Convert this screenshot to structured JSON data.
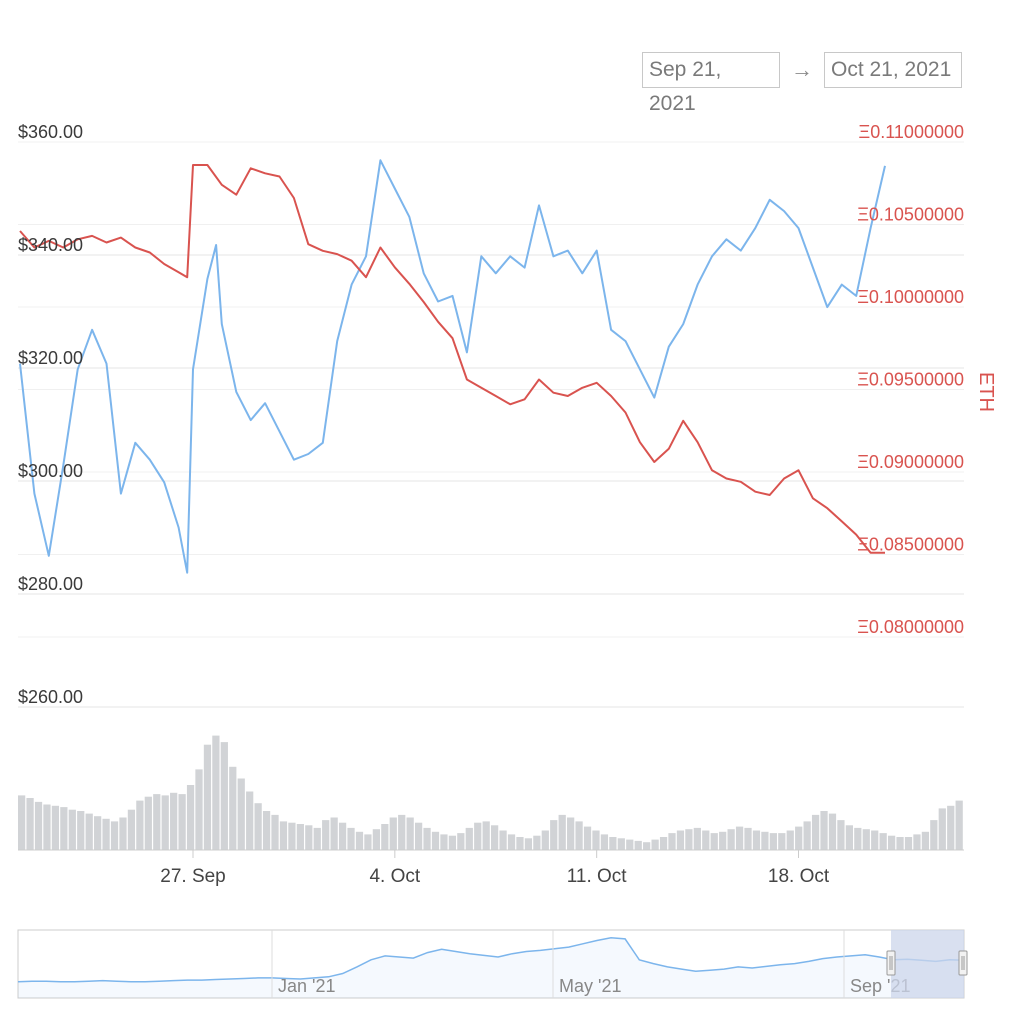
{
  "date_range": {
    "from": "Sep 21, 2021",
    "arrow": "→",
    "to": "Oct 21, 2021"
  },
  "colors": {
    "usd_line": "#7cb5ec",
    "eth_line": "#d9534f",
    "volume": "#c9cbcf",
    "grid": "#e6e6e6",
    "navigator_mask": "#ccd6eb"
  },
  "chart_data": {
    "type": "line",
    "x_label_ticks": [
      "27. Sep",
      "4. Oct",
      "11. Oct",
      "18. Oct"
    ],
    "x_domain": [
      "2021-09-21",
      "2021-10-21"
    ],
    "y_left": {
      "ticks": [
        "$360.00",
        "$340.00",
        "$320.00",
        "$300.00",
        "$280.00",
        "$260.00"
      ],
      "range": [
        260,
        360
      ]
    },
    "y_right": {
      "title": "ETH",
      "ticks": [
        "Ξ0.11000000",
        "Ξ0.10500000",
        "Ξ0.10000000",
        "Ξ0.09500000",
        "Ξ0.09000000",
        "Ξ0.08500000",
        "Ξ0.08000000"
      ],
      "range": [
        0.08,
        0.11
      ]
    },
    "series": [
      {
        "axis": "left",
        "points": [
          [
            "09-21",
            319
          ],
          [
            "09-21.5",
            296
          ],
          [
            "09-22",
            285
          ],
          [
            "09-22.5",
            301
          ],
          [
            "09-23",
            318
          ],
          [
            "09-23.5",
            325
          ],
          [
            "09-24",
            319
          ],
          [
            "09-24.5",
            296
          ],
          [
            "09-25",
            305
          ],
          [
            "09-25.5",
            302
          ],
          [
            "09-26",
            298
          ],
          [
            "09-26.5",
            290
          ],
          [
            "09-26.8",
            282
          ],
          [
            "09-27",
            318
          ],
          [
            "09-27.5",
            334
          ],
          [
            "09-27.8",
            340
          ],
          [
            "09-28",
            326
          ],
          [
            "09-28.5",
            314
          ],
          [
            "09-29",
            309
          ],
          [
            "09-29.5",
            312
          ],
          [
            "09-30",
            307
          ],
          [
            "09-30.5",
            302
          ],
          [
            "10-01",
            303
          ],
          [
            "10-01.5",
            305
          ],
          [
            "10-02",
            323
          ],
          [
            "10-02.5",
            333
          ],
          [
            "10-03",
            338
          ],
          [
            "10-03.5",
            355
          ],
          [
            "10-04",
            350
          ],
          [
            "10-04.5",
            345
          ],
          [
            "10-05",
            335
          ],
          [
            "10-05.5",
            330
          ],
          [
            "10-06",
            331
          ],
          [
            "10-06.5",
            321
          ],
          [
            "10-07",
            338
          ],
          [
            "10-07.5",
            335
          ],
          [
            "10-08",
            338
          ],
          [
            "10-08.5",
            336
          ],
          [
            "10-09",
            347
          ],
          [
            "10-09.5",
            338
          ],
          [
            "10-10",
            339
          ],
          [
            "10-10.5",
            335
          ],
          [
            "10-11",
            339
          ],
          [
            "10-11.5",
            325
          ],
          [
            "10-12",
            323
          ],
          [
            "10-12.5",
            318
          ],
          [
            "10-13",
            313
          ],
          [
            "10-13.5",
            322
          ],
          [
            "10-14",
            326
          ],
          [
            "10-14.5",
            333
          ],
          [
            "10-15",
            338
          ],
          [
            "10-15.5",
            341
          ],
          [
            "10-16",
            339
          ],
          [
            "10-16.5",
            343
          ],
          [
            "10-17",
            348
          ],
          [
            "10-17.5",
            346
          ],
          [
            "10-18",
            343
          ],
          [
            "10-18.5",
            336
          ],
          [
            "10-19",
            329
          ],
          [
            "10-19.5",
            333
          ],
          [
            "10-20",
            331
          ],
          [
            "10-20.5",
            343
          ],
          [
            "10-21",
            354
          ]
        ]
      },
      {
        "axis": "right",
        "points": [
          [
            "09-21",
            0.104
          ],
          [
            "09-21.5",
            0.103
          ],
          [
            "09-22",
            0.1034
          ],
          [
            "09-22.5",
            0.103
          ],
          [
            "09-23",
            0.1035
          ],
          [
            "09-23.5",
            0.1037
          ],
          [
            "09-24",
            0.1033
          ],
          [
            "09-24.5",
            0.1036
          ],
          [
            "09-25",
            0.103
          ],
          [
            "09-25.5",
            0.1027
          ],
          [
            "09-26",
            0.102
          ],
          [
            "09-26.5",
            0.1015
          ],
          [
            "09-26.8",
            0.1012
          ],
          [
            "09-27",
            0.108
          ],
          [
            "09-27.5",
            0.108
          ],
          [
            "09-28",
            0.1068
          ],
          [
            "09-28.5",
            0.1062
          ],
          [
            "09-29",
            0.1078
          ],
          [
            "09-29.5",
            0.1075
          ],
          [
            "09-30",
            0.1073
          ],
          [
            "09-30.5",
            0.106
          ],
          [
            "10-01",
            0.1032
          ],
          [
            "10-01.5",
            0.1028
          ],
          [
            "10-02",
            0.1026
          ],
          [
            "10-02.5",
            0.1022
          ],
          [
            "10-03",
            0.1012
          ],
          [
            "10-03.5",
            0.103
          ],
          [
            "10-04",
            0.1018
          ],
          [
            "10-04.5",
            0.1008
          ],
          [
            "10-05",
            0.0997
          ],
          [
            "10-05.5",
            0.0985
          ],
          [
            "10-06",
            0.0975
          ],
          [
            "10-06.5",
            0.095
          ],
          [
            "10-07",
            0.0945
          ],
          [
            "10-07.5",
            0.094
          ],
          [
            "10-08",
            0.0935
          ],
          [
            "10-08.5",
            0.0938
          ],
          [
            "10-09",
            0.095
          ],
          [
            "10-09.5",
            0.0942
          ],
          [
            "10-10",
            0.094
          ],
          [
            "10-10.5",
            0.0945
          ],
          [
            "10-11",
            0.0948
          ],
          [
            "10-11.5",
            0.094
          ],
          [
            "10-12",
            0.093
          ],
          [
            "10-12.5",
            0.0912
          ],
          [
            "10-13",
            0.09
          ],
          [
            "10-13.5",
            0.0908
          ],
          [
            "10-14",
            0.0925
          ],
          [
            "10-14.5",
            0.0912
          ],
          [
            "10-15",
            0.0895
          ],
          [
            "10-15.5",
            0.089
          ],
          [
            "10-16",
            0.0888
          ],
          [
            "10-16.5",
            0.0882
          ],
          [
            "10-17",
            0.088
          ],
          [
            "10-17.5",
            0.089
          ],
          [
            "10-18",
            0.0895
          ],
          [
            "10-18.5",
            0.0878
          ],
          [
            "10-19",
            0.0872
          ],
          [
            "10-19.5",
            0.0864
          ],
          [
            "10-20",
            0.0856
          ],
          [
            "10-20.5",
            0.0845
          ],
          [
            "10-21",
            0.0845
          ]
        ]
      }
    ],
    "volume": [
      0.42,
      0.4,
      0.37,
      0.35,
      0.34,
      0.33,
      0.31,
      0.3,
      0.28,
      0.26,
      0.24,
      0.22,
      0.25,
      0.31,
      0.38,
      0.41,
      0.43,
      0.42,
      0.44,
      0.43,
      0.5,
      0.62,
      0.81,
      0.88,
      0.83,
      0.64,
      0.55,
      0.45,
      0.36,
      0.3,
      0.27,
      0.22,
      0.21,
      0.2,
      0.19,
      0.17,
      0.23,
      0.25,
      0.21,
      0.17,
      0.14,
      0.12,
      0.16,
      0.2,
      0.25,
      0.27,
      0.25,
      0.21,
      0.17,
      0.14,
      0.12,
      0.11,
      0.13,
      0.17,
      0.21,
      0.22,
      0.19,
      0.15,
      0.12,
      0.1,
      0.09,
      0.11,
      0.15,
      0.23,
      0.27,
      0.25,
      0.22,
      0.18,
      0.15,
      0.12,
      0.1,
      0.09,
      0.08,
      0.07,
      0.06,
      0.08,
      0.1,
      0.13,
      0.15,
      0.16,
      0.17,
      0.15,
      0.13,
      0.14,
      0.16,
      0.18,
      0.17,
      0.15,
      0.14,
      0.13,
      0.13,
      0.15,
      0.18,
      0.22,
      0.27,
      0.3,
      0.28,
      0.23,
      0.19,
      0.17,
      0.16,
      0.15,
      0.13,
      0.11,
      0.1,
      0.1,
      0.12,
      0.14,
      0.23,
      0.32,
      0.34,
      0.38
    ],
    "navigator": {
      "labels": [
        "Jan '21",
        "May '21",
        "Sep '21"
      ],
      "values": [
        0.15,
        0.16,
        0.16,
        0.15,
        0.15,
        0.16,
        0.17,
        0.16,
        0.15,
        0.15,
        0.16,
        0.17,
        0.18,
        0.18,
        0.19,
        0.2,
        0.21,
        0.22,
        0.22,
        0.21,
        0.2,
        0.22,
        0.24,
        0.3,
        0.42,
        0.55,
        0.62,
        0.6,
        0.58,
        0.68,
        0.74,
        0.7,
        0.66,
        0.63,
        0.6,
        0.66,
        0.7,
        0.72,
        0.75,
        0.78,
        0.84,
        0.9,
        0.95,
        0.93,
        0.55,
        0.48,
        0.42,
        0.38,
        0.34,
        0.36,
        0.38,
        0.42,
        0.4,
        0.43,
        0.46,
        0.48,
        0.52,
        0.57,
        0.6,
        0.62,
        0.64,
        0.6,
        0.55,
        0.56,
        0.54,
        0.52,
        0.55,
        0.54
      ]
    }
  }
}
